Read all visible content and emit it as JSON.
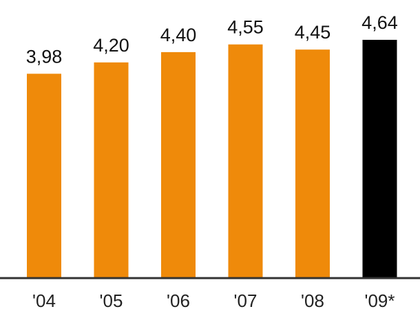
{
  "chart_data": {
    "type": "bar",
    "title": "",
    "xlabel": "",
    "ylabel": "",
    "categories": [
      "'04",
      "'05",
      "'06",
      "'07",
      "'08",
      "'09*"
    ],
    "value_labels": [
      "3,98",
      "4,20",
      "4,40",
      "4,55",
      "4,45",
      "4,64"
    ],
    "values": [
      3.98,
      4.2,
      4.4,
      4.55,
      4.45,
      4.64
    ],
    "ylim": [
      0,
      4.64
    ],
    "grid": false,
    "legend": "none",
    "colors": {
      "default_bar": "#ef8a0a",
      "highlight_bar": "#000000",
      "axis": "#333333",
      "text": "#111111"
    },
    "highlight_index": 5
  }
}
